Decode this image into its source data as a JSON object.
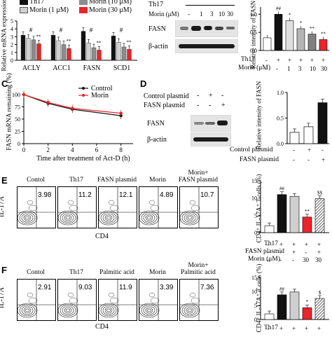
{
  "panelA": {
    "legend": [
      "Th17",
      "Morin (1 μM)",
      "Morin (10 μM)",
      "Morin (30 μM)"
    ],
    "colors": [
      "#111111",
      "#d0d0d0",
      "#8c8c8c",
      "#e8262b"
    ],
    "ylabel": "Relative mRNA expression",
    "genes": [
      "ACLY",
      "ACC1",
      "FASN",
      "SCD1"
    ],
    "yticks": [
      "0",
      "1",
      "2",
      "3",
      "4",
      "5"
    ]
  },
  "panelB": {
    "header_th17": "Th17",
    "header_morin": "Morin (μM)",
    "header_doses": [
      "-",
      "1",
      "3",
      "10",
      "30"
    ],
    "blot_labels": [
      "FASN",
      "β-actin"
    ],
    "ylabel": "Relative intensity of FASN",
    "yticks": [
      "0.0",
      "0.5",
      "1.0"
    ],
    "row_labels": [
      "Th17",
      "Morin (μM)"
    ],
    "th17_signs": [
      "-",
      "+",
      "+",
      "+",
      "+",
      "+"
    ],
    "morin_signs": [
      "-",
      "-",
      "1",
      "3",
      "10",
      "30"
    ],
    "stars": [
      "##",
      "*",
      "*",
      "**",
      "**"
    ]
  },
  "panelC": {
    "letter": "C",
    "ylabel": "FASN mRNA remaining (%)",
    "xlabel": "Time after treatment of Act-D (h)",
    "legend": [
      "Control",
      "Morin"
    ],
    "xticks": [
      "0",
      "2",
      "4",
      "6",
      "8"
    ],
    "yticks": [
      "0",
      "25",
      "50",
      "75",
      "100"
    ]
  },
  "panelD": {
    "letter": "D",
    "row1": "Control plasmid",
    "row1_signs": [
      "-",
      "+",
      "-"
    ],
    "row2": "FASN plasmid",
    "row2_signs": [
      "-",
      "-",
      "+"
    ],
    "blot_labels": [
      "FASN",
      "β-actin"
    ],
    "ylabel": "Relative intensity of FASN",
    "yticks": [
      "0.0",
      "0.5",
      "1.0"
    ],
    "bar_rows": [
      "Control plasmid",
      "FASN plasmid"
    ],
    "bar_row1": [
      "-",
      "+",
      "-"
    ],
    "bar_row2": [
      "-",
      "-",
      "+"
    ]
  },
  "panelE": {
    "letter": "E",
    "conditions": [
      "Contol",
      "Th17",
      "FASN plasmid",
      "Morin",
      "Morin+\nFASN plasmid"
    ],
    "values": [
      "3.98",
      "11.2",
      "12.1",
      "4.89",
      "10.7"
    ],
    "ylabel_axis": "IL-17A",
    "xlabel_axis": "CD4",
    "bar_ylabel": "CD4⁺ IL-17A⁺ T cells (%)",
    "yticks": [
      "0",
      "5",
      "10",
      "15"
    ],
    "rows": [
      "Th17",
      "FASN plasmid",
      "Morin (μM)"
    ],
    "row_signs": [
      [
        "-",
        "+",
        "+",
        "+",
        "+"
      ],
      [
        "-",
        "-",
        "+",
        "-",
        "+"
      ],
      [
        "-",
        "-",
        "-",
        "30",
        "30"
      ]
    ],
    "stars": [
      "##",
      "**",
      "$$"
    ]
  },
  "panelF": {
    "letter": "F",
    "conditions": [
      "Contol",
      "Th17",
      "Palmitic acid",
      "Morin",
      "Morin+\nPalmitic acid"
    ],
    "values": [
      "2.91",
      "9.03",
      "11.9",
      "3.39",
      "7.36"
    ],
    "ylabel_axis": "IL-17A",
    "xlabel_axis": "CD4",
    "bar_ylabel": "CD4⁺ IL-17A⁺ T cells (%)",
    "yticks": [
      "0",
      "5",
      "10",
      "15"
    ],
    "row": "Th17",
    "row_signs": [
      "-",
      "+",
      "+",
      "+",
      "+"
    ],
    "stars": [
      "##",
      "*",
      "$"
    ]
  },
  "chart_data": [
    {
      "type": "bar",
      "panel": "A",
      "categories": [
        "ACLY",
        "ACC1",
        "FASN",
        "SCD1"
      ],
      "series": [
        {
          "name": "Th17",
          "values": [
            3.2,
            3.2,
            3.7,
            3.1
          ]
        },
        {
          "name": "Morin (1 μM)",
          "values": [
            2.8,
            2.5,
            2.2,
            2.3
          ]
        },
        {
          "name": "Morin (10 μM)",
          "values": [
            2.6,
            2.0,
            1.6,
            1.7
          ]
        },
        {
          "name": "Morin (30 μM)",
          "values": [
            2.1,
            1.5,
            1.3,
            1.4
          ]
        }
      ],
      "ylim": [
        0,
        5
      ]
    },
    {
      "type": "bar",
      "panel": "B",
      "values": [
        0.35,
        1.0,
        0.82,
        0.6,
        0.45,
        0.3
      ],
      "ylim": [
        0,
        1.2
      ]
    },
    {
      "type": "line",
      "panel": "C",
      "x": [
        0,
        2,
        4,
        8
      ],
      "series": [
        {
          "name": "Control",
          "values": [
            100,
            82,
            70,
            57
          ]
        },
        {
          "name": "Morin",
          "values": [
            100,
            84,
            72,
            62
          ]
        }
      ],
      "xlim": [
        0,
        9
      ],
      "ylim": [
        0,
        100
      ]
    },
    {
      "type": "bar",
      "panel": "D",
      "values": [
        0.22,
        0.33,
        0.8
      ],
      "ylim": [
        0,
        1.0
      ]
    },
    {
      "type": "bar",
      "panel": "E",
      "values": [
        2.0,
        11.0,
        10.5,
        4.5,
        9.8
      ],
      "ylim": [
        0,
        15
      ]
    },
    {
      "type": "bar",
      "panel": "F",
      "values": [
        2.0,
        8.8,
        9.8,
        4.2,
        7.5
      ],
      "ylim": [
        0,
        15
      ]
    }
  ]
}
